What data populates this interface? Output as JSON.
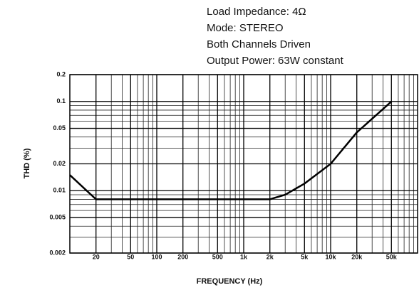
{
  "chart_data": {
    "type": "line",
    "annotations": [
      "Load Impedance: 4Ω",
      "Mode: STEREO",
      "Both Channels Driven",
      "Output Power: 63W constant"
    ],
    "y_label": "THD (%)",
    "x_label": "FREQUENCY (Hz)",
    "log_x": true,
    "log_y": true,
    "grid": true,
    "xlim": [
      10,
      100000
    ],
    "ylim": [
      0.002,
      0.2
    ],
    "xticks": [
      20,
      50,
      100,
      200,
      500,
      {
        "value": 1000,
        "label": "1k"
      },
      {
        "value": 2000,
        "label": "2k"
      },
      {
        "value": 5000,
        "label": "5k"
      },
      {
        "value": 10000,
        "label": "10k"
      },
      {
        "value": 20000,
        "label": "20k"
      },
      {
        "value": 50000,
        "label": "50k"
      }
    ],
    "xminor": [
      30,
      40,
      60,
      70,
      80,
      90,
      300,
      400,
      600,
      700,
      800,
      900,
      3000,
      4000,
      6000,
      7000,
      8000,
      9000,
      30000,
      40000,
      60000,
      70000,
      80000,
      90000
    ],
    "yticks": [
      0.002,
      0.005,
      0.01,
      0.02,
      0.05,
      0.1,
      0.2
    ],
    "yminor": [
      0.003,
      0.004,
      0.006,
      0.007,
      0.008,
      0.009,
      0.03,
      0.04,
      0.06,
      0.07,
      0.08,
      0.09
    ],
    "series": [
      {
        "name": "THD",
        "color": "#000000",
        "x": [
          10,
          20,
          50,
          100,
          500,
          1000,
          2000,
          3000,
          5000,
          10000,
          20000,
          50000
        ],
        "values": [
          0.015,
          0.008,
          0.008,
          0.008,
          0.008,
          0.008,
          0.008,
          0.009,
          0.012,
          0.02,
          0.045,
          0.1
        ]
      }
    ]
  }
}
